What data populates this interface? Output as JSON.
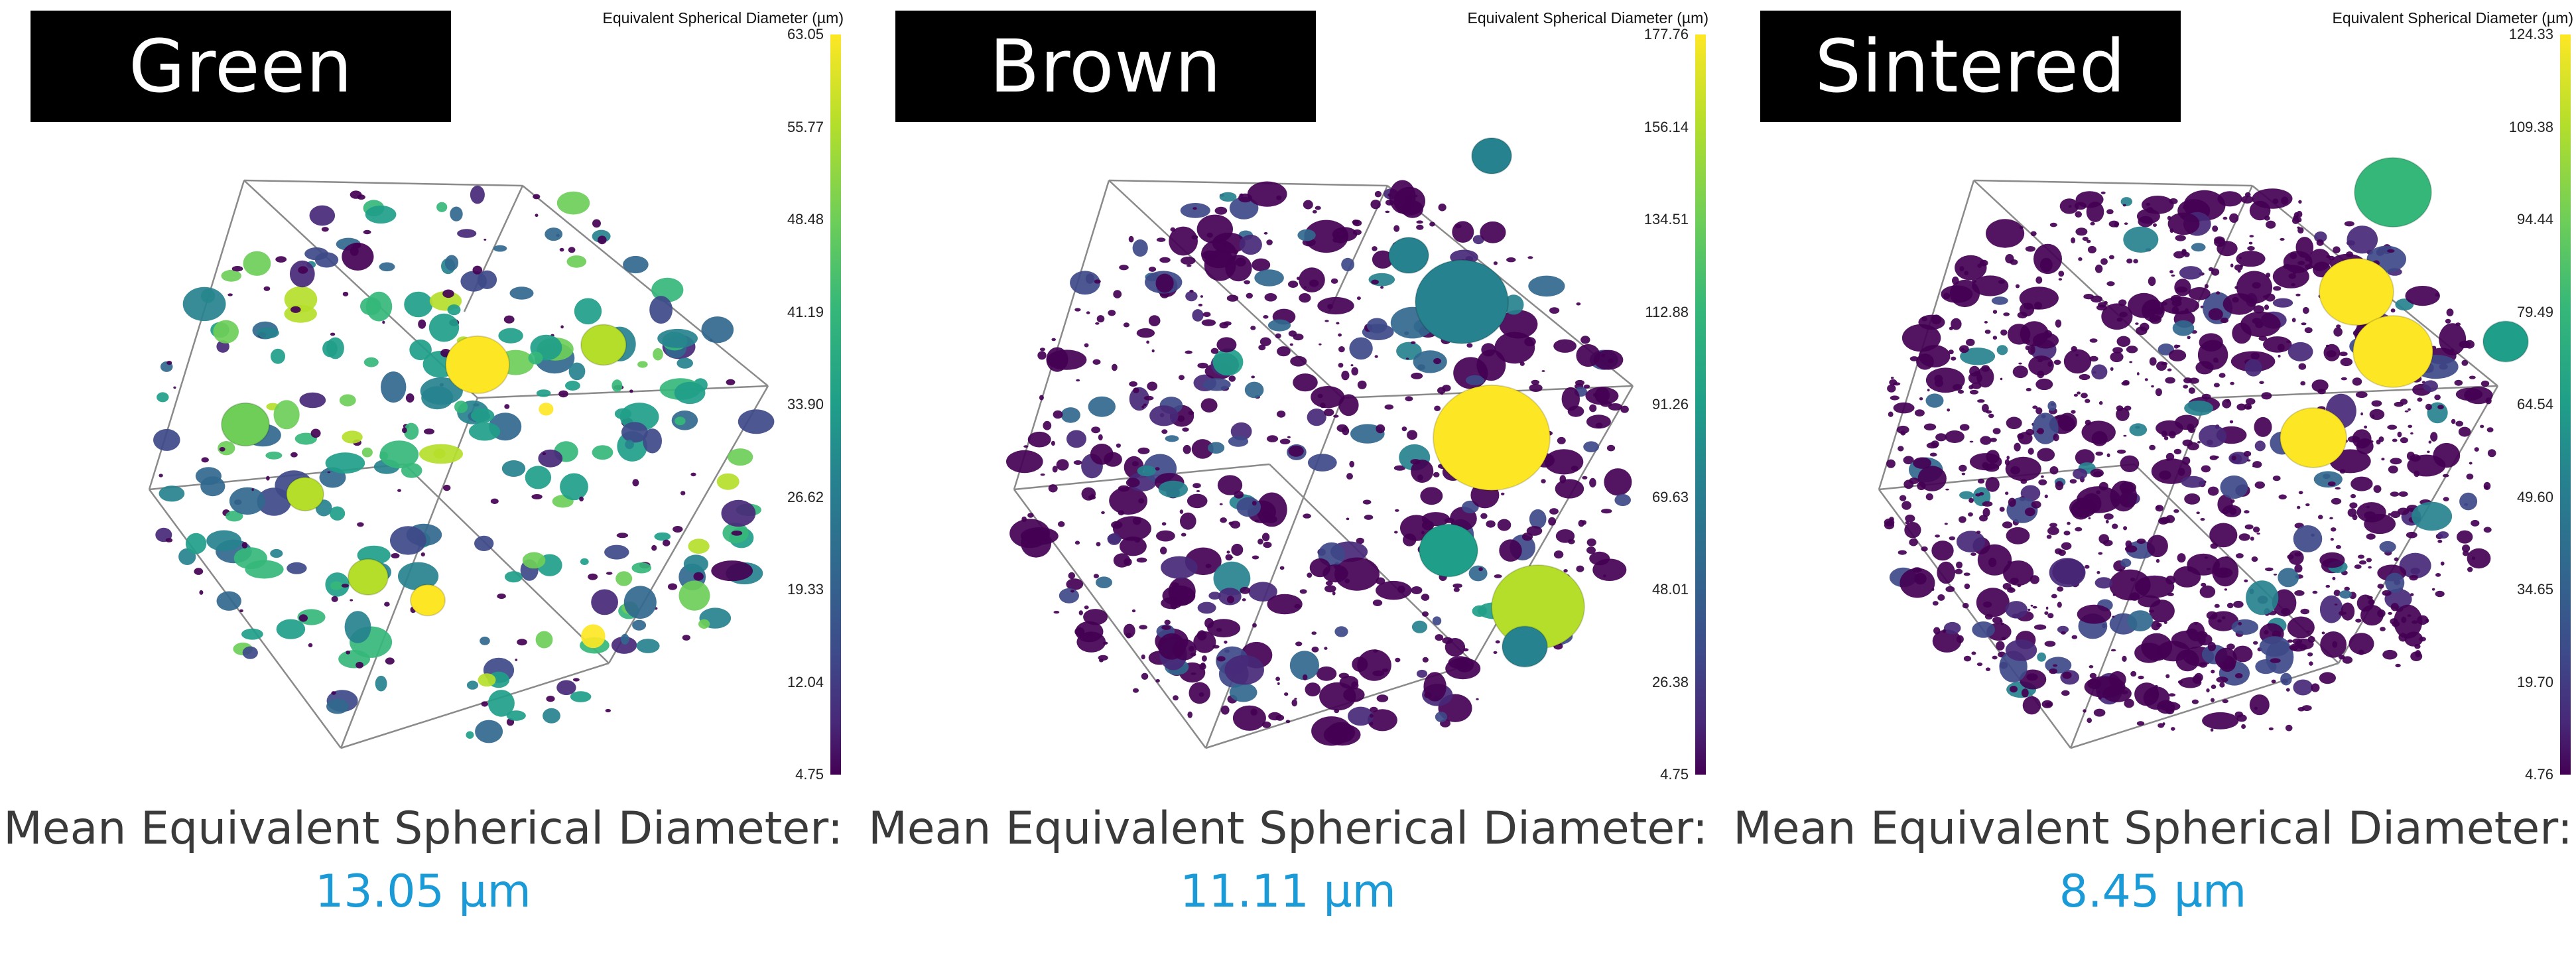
{
  "colorbar_title": "Equivalent Spherical Diameter (µm)",
  "mean_label": "Mean Equivalent Spherical Diameter:",
  "colors": {
    "title_bg": "#000000",
    "title_text": "#ffffff",
    "mean_value": "#1a9ad6",
    "viridis": [
      "#440154",
      "#482878",
      "#3e4989",
      "#31688e",
      "#26828e",
      "#1f9e89",
      "#35b779",
      "#6ece58",
      "#b5de2b",
      "#fde725"
    ]
  },
  "panels": [
    {
      "title": "Green",
      "mean_value": "13.05 µm",
      "colorbar_ticks": [
        "63.05",
        "55.77",
        "48.48",
        "41.19",
        "33.90",
        "26.62",
        "19.33",
        "12.04",
        "4.75"
      ]
    },
    {
      "title": "Brown",
      "mean_value": "11.11 µm",
      "colorbar_ticks": [
        "177.76",
        "156.14",
        "134.51",
        "112.88",
        "91.26",
        "69.63",
        "48.01",
        "26.38",
        "4.75"
      ]
    },
    {
      "title": "Sintered",
      "mean_value": "8.45 µm",
      "colorbar_ticks": [
        "124.33",
        "109.38",
        "94.44",
        "79.49",
        "64.54",
        "49.60",
        "34.65",
        "19.70",
        "4.76"
      ]
    }
  ]
}
